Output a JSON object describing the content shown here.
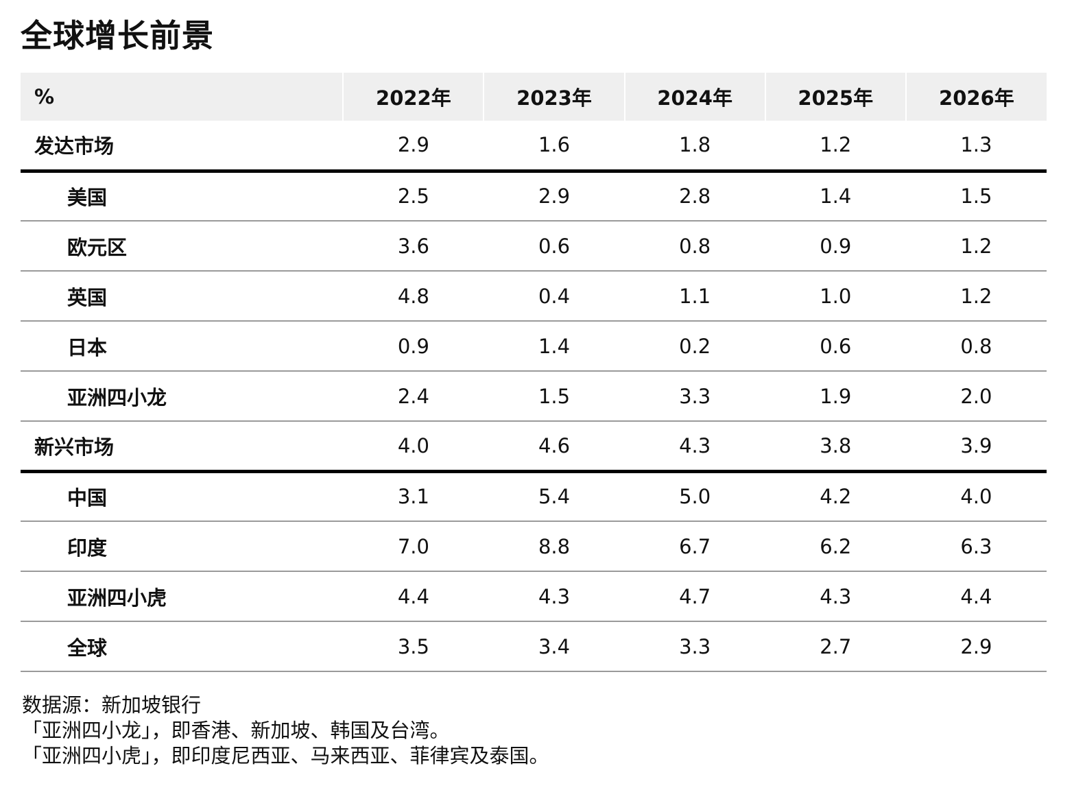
{
  "title": "全球增长前景",
  "chart_data": {
    "type": "table",
    "title": "全球增长前景",
    "unit_header": "%",
    "columns": [
      "2022年",
      "2023年",
      "2024年",
      "2025年",
      "2026年"
    ],
    "rows": [
      {
        "label": "发达市场",
        "level": "group",
        "values": [
          "2.9",
          "1.6",
          "1.8",
          "1.2",
          "1.3"
        ]
      },
      {
        "label": "美国",
        "level": "sub",
        "values": [
          "2.5",
          "2.9",
          "2.8",
          "1.4",
          "1.5"
        ]
      },
      {
        "label": "欧元区",
        "level": "sub",
        "values": [
          "3.6",
          "0.6",
          "0.8",
          "0.9",
          "1.2"
        ]
      },
      {
        "label": "英国",
        "level": "sub",
        "values": [
          "4.8",
          "0.4",
          "1.1",
          "1.0",
          "1.2"
        ]
      },
      {
        "label": "日本",
        "level": "sub",
        "values": [
          "0.9",
          "1.4",
          "0.2",
          "0.6",
          "0.8"
        ]
      },
      {
        "label": "亚洲四小龙",
        "level": "sub",
        "values": [
          "2.4",
          "1.5",
          "3.3",
          "1.9",
          "2.0"
        ]
      },
      {
        "label": "新兴市场",
        "level": "group",
        "values": [
          "4.0",
          "4.6",
          "4.3",
          "3.8",
          "3.9"
        ]
      },
      {
        "label": "中国",
        "level": "sub",
        "values": [
          "3.1",
          "5.4",
          "5.0",
          "4.2",
          "4.0"
        ]
      },
      {
        "label": "印度",
        "level": "sub",
        "values": [
          "7.0",
          "8.8",
          "6.7",
          "6.2",
          "6.3"
        ]
      },
      {
        "label": "亚洲四小虎",
        "level": "sub",
        "values": [
          "4.4",
          "4.3",
          "4.7",
          "4.3",
          "4.4"
        ]
      },
      {
        "label": "全球",
        "level": "sub",
        "values": [
          "3.5",
          "3.4",
          "3.3",
          "2.7",
          "2.9"
        ]
      }
    ]
  },
  "notes": [
    "数据源：新加坡银行",
    "「亚洲四小龙」，即香港、新加坡、韩国及台湾。",
    "「亚洲四小虎」，即印度尼西亚、马来西亚、菲律宾及泰国。"
  ]
}
